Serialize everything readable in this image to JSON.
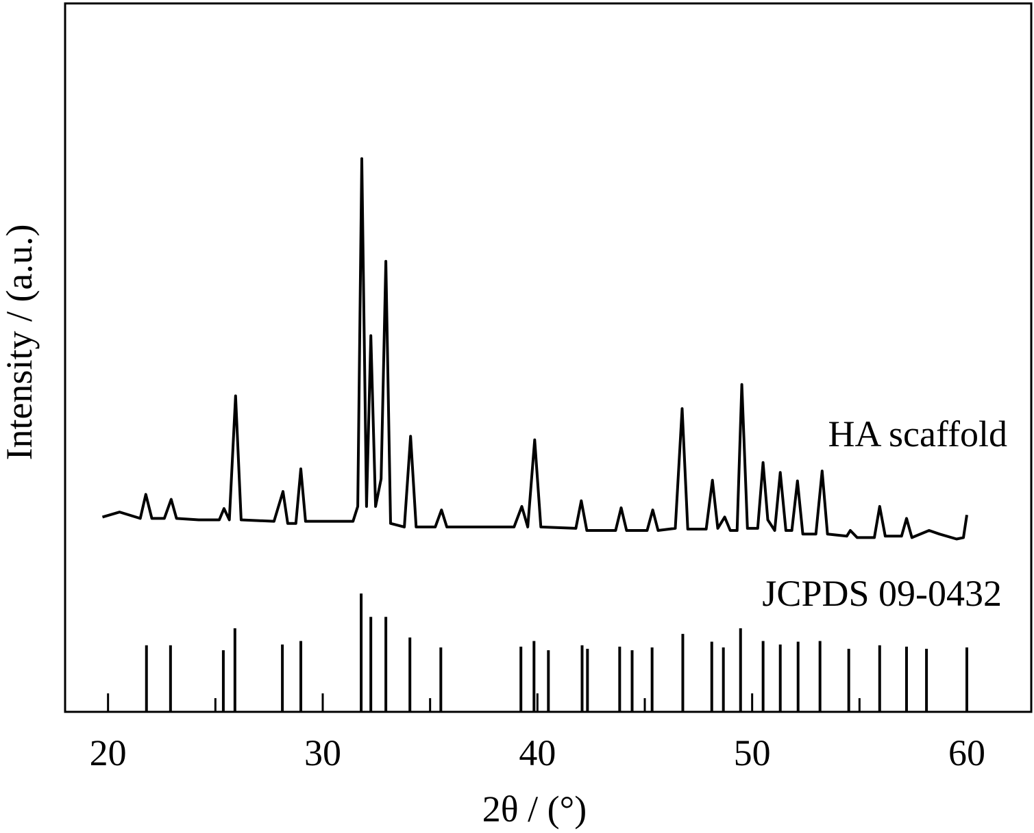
{
  "chart_data": {
    "type": "line",
    "xlabel": "2θ / (°)",
    "ylabel": "Intensity / (a.u.)",
    "xlim": [
      18,
      63
    ],
    "ylim": [
      0,
      100
    ],
    "xticks": [
      20,
      30,
      40,
      50,
      60
    ],
    "xminorticks": [
      25,
      35,
      45,
      55
    ],
    "series": [
      {
        "name": "HA scaffold",
        "color": "#000000",
        "style": "line",
        "x": [
          19.74,
          20.54,
          21.5,
          21.76,
          22.04,
          22.62,
          22.94,
          23.19,
          24.22,
          25.18,
          25.4,
          25.65,
          25.94,
          26.2,
          27.73,
          28.15,
          28.37,
          28.75,
          28.98,
          29.2,
          31.41,
          31.63,
          31.82,
          32.04,
          32.24,
          32.46,
          32.72,
          32.94,
          33.16,
          33.8,
          34.09,
          34.35,
          35.24,
          35.53,
          35.78,
          38.91,
          39.27,
          39.55,
          39.87,
          40.16,
          41.79,
          42.04,
          42.3,
          43.64,
          43.9,
          44.15,
          45.11,
          45.37,
          45.62,
          46.42,
          46.74,
          47.0,
          47.86,
          48.15,
          48.4,
          48.72,
          48.98,
          49.3,
          49.52,
          49.78,
          50.26,
          50.51,
          50.73,
          51.05,
          51.31,
          51.57,
          51.85,
          52.11,
          52.36,
          52.97,
          53.26,
          53.51,
          54.41,
          54.57,
          54.89,
          55.69,
          55.94,
          56.2,
          56.96,
          57.19,
          57.44,
          58.24,
          58.72,
          59.52,
          59.84,
          60.0
        ],
        "values": [
          27.5,
          28.2,
          27.3,
          30.7,
          27.3,
          27.3,
          30.0,
          27.3,
          27.1,
          27.1,
          28.7,
          27.1,
          44.6,
          27.1,
          26.9,
          31.1,
          26.6,
          26.6,
          34.3,
          26.9,
          26.9,
          29.0,
          78.1,
          29.0,
          53.1,
          29.0,
          32.9,
          63.6,
          26.6,
          26.1,
          38.9,
          26.1,
          26.1,
          28.5,
          26.1,
          26.1,
          29.0,
          26.1,
          38.4,
          26.1,
          25.9,
          29.8,
          25.6,
          25.6,
          28.8,
          25.6,
          25.6,
          28.5,
          25.6,
          25.9,
          42.8,
          25.8,
          25.8,
          32.7,
          25.9,
          27.5,
          25.6,
          25.6,
          46.2,
          25.9,
          25.9,
          35.2,
          27.1,
          25.6,
          33.8,
          25.6,
          25.6,
          32.6,
          25.1,
          25.1,
          34.0,
          25.1,
          24.8,
          25.6,
          24.6,
          24.6,
          29.0,
          24.8,
          24.8,
          27.3,
          24.6,
          25.6,
          25.1,
          24.4,
          24.6,
          27.8
        ]
      },
      {
        "name": "JCPDS 09-0432",
        "color": "#000000",
        "style": "sticks",
        "x": [
          21.79,
          22.91,
          25.37,
          25.91,
          28.12,
          28.98,
          31.79,
          32.24,
          32.94,
          34.06,
          35.5,
          39.23,
          39.84,
          40.51,
          42.08,
          42.33,
          43.83,
          44.41,
          45.34,
          46.77,
          48.12,
          48.66,
          49.46,
          50.51,
          51.31,
          52.14,
          53.16,
          54.5,
          55.94,
          57.19,
          58.12,
          60.0
        ],
        "values": [
          9.4,
          9.4,
          8.7,
          11.8,
          9.5,
          10.0,
          16.7,
          13.4,
          13.4,
          10.5,
          9.1,
          9.2,
          10.0,
          8.7,
          9.4,
          8.9,
          9.2,
          8.7,
          9.1,
          11.0,
          9.9,
          9.1,
          11.8,
          10.0,
          9.5,
          9.9,
          10.0,
          8.9,
          9.4,
          9.2,
          8.9,
          9.1
        ]
      }
    ]
  }
}
